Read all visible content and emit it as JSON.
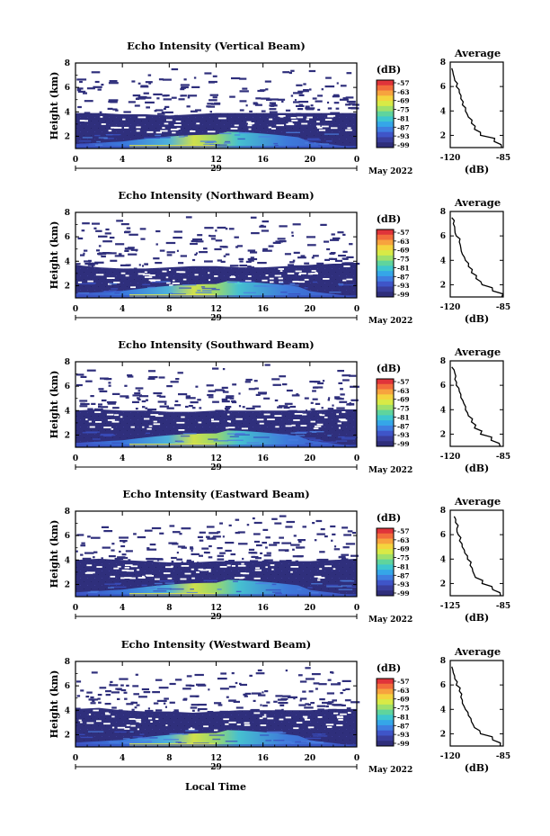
{
  "figure": {
    "shared_xlabel": "Local Time",
    "date_label": "May 2022",
    "day_label": "29"
  },
  "colorbar": {
    "unit": "(dB)",
    "ticks": [
      "-57",
      "-63",
      "-69",
      "-75",
      "-81",
      "-87",
      "-93",
      "-99"
    ],
    "colors": [
      "#e0343a",
      "#f26d3c",
      "#f7a33e",
      "#f4d43e",
      "#d8ea46",
      "#9fe06b",
      "#5fd49d",
      "#3ec6cf",
      "#35a6e8",
      "#3f7ee0",
      "#3f55c8",
      "#3a3e9c",
      "#2f2e7a"
    ],
    "background_color": "#2f2f7c"
  },
  "chart_data": [
    {
      "type": "heatmap",
      "title": "Echo Intensity (Vertical Beam)",
      "ylabel": "Height (km)",
      "x_ticks": [
        "0",
        "4",
        "8",
        "12",
        "16",
        "20",
        "0"
      ],
      "y_ticks": [
        "2",
        "4",
        "6",
        "8"
      ],
      "xlim": [
        0,
        24
      ],
      "ylim": [
        1,
        8
      ],
      "layer_top_km": [
        3.9,
        3.9,
        3.8,
        3.8,
        3.7,
        3.8,
        3.9,
        3.9,
        3.9,
        3.9,
        3.9,
        3.9,
        3.9
      ],
      "average_profile": {
        "title": "Average",
        "xlabel": "(dB)",
        "x_ticks": [
          "-120",
          "-85"
        ],
        "y_ticks": [
          "2",
          "4",
          "6",
          "8"
        ],
        "xlim": [
          -120,
          -85
        ],
        "ylim": [
          1,
          8
        ],
        "height_km": [
          1.0,
          1.5,
          2.0,
          2.5,
          3.0,
          3.5,
          4.0,
          4.5,
          5.0,
          5.5,
          6.0,
          6.5,
          7.0,
          7.5
        ],
        "values_db": [
          -86,
          -91,
          -100,
          -104,
          -106,
          -108,
          -110,
          -112,
          -113,
          -114,
          -116,
          -117,
          -118,
          -119
        ]
      }
    },
    {
      "type": "heatmap",
      "title": "Echo Intensity (Northward Beam)",
      "ylabel": "Height (km)",
      "x_ticks": [
        "0",
        "4",
        "8",
        "12",
        "16",
        "20",
        "0"
      ],
      "y_ticks": [
        "2",
        "4",
        "6",
        "8"
      ],
      "xlim": [
        0,
        24
      ],
      "ylim": [
        1,
        8
      ],
      "layer_top_km": [
        3.7,
        3.5,
        3.4,
        3.4,
        3.5,
        3.6,
        3.6,
        3.5,
        3.5,
        3.6,
        3.7,
        3.8,
        3.8
      ],
      "average_profile": {
        "title": "Average",
        "xlabel": "(dB)",
        "x_ticks": [
          "-120",
          "-85"
        ],
        "y_ticks": [
          "2",
          "4",
          "6",
          "8"
        ],
        "xlim": [
          -120,
          -85
        ],
        "ylim": [
          1,
          8
        ],
        "height_km": [
          1.0,
          1.5,
          2.0,
          2.5,
          3.0,
          3.5,
          4.0,
          4.5,
          5.0,
          5.5,
          6.0,
          6.5,
          7.0,
          7.5
        ],
        "values_db": [
          -86,
          -92,
          -99,
          -103,
          -106,
          -108,
          -110,
          -112,
          -113,
          -114,
          -116,
          -117,
          -118,
          -119
        ]
      }
    },
    {
      "type": "heatmap",
      "title": "Echo Intensity (Southward Beam)",
      "ylabel": "Height (km)",
      "x_ticks": [
        "0",
        "4",
        "8",
        "12",
        "16",
        "20",
        "0"
      ],
      "y_ticks": [
        "2",
        "4",
        "6",
        "8"
      ],
      "xlim": [
        0,
        24
      ],
      "ylim": [
        1,
        8
      ],
      "layer_top_km": [
        4.0,
        4.1,
        4.0,
        4.0,
        3.9,
        3.9,
        4.0,
        4.0,
        4.0,
        4.0,
        4.0,
        4.1,
        4.1
      ],
      "average_profile": {
        "title": "Average",
        "xlabel": "(dB)",
        "x_ticks": [
          "-120",
          "-85"
        ],
        "y_ticks": [
          "2",
          "4",
          "6",
          "8"
        ],
        "xlim": [
          -120,
          -85
        ],
        "ylim": [
          1,
          8
        ],
        "height_km": [
          1.0,
          1.5,
          2.0,
          2.5,
          3.0,
          3.5,
          4.0,
          4.5,
          5.0,
          5.5,
          6.0,
          6.5,
          7.0,
          7.5
        ],
        "values_db": [
          -87,
          -93,
          -100,
          -104,
          -106,
          -108,
          -110,
          -111,
          -113,
          -114,
          -116,
          -117,
          -117,
          -119
        ]
      }
    },
    {
      "type": "heatmap",
      "title": "Echo Intensity (Eastward Beam)",
      "ylabel": "Height (km)",
      "x_ticks": [
        "0",
        "4",
        "8",
        "12",
        "16",
        "20",
        "0"
      ],
      "y_ticks": [
        "2",
        "4",
        "6",
        "8"
      ],
      "xlim": [
        0,
        24
      ],
      "ylim": [
        1,
        8
      ],
      "layer_top_km": [
        4.0,
        4.1,
        4.0,
        3.9,
        3.8,
        3.8,
        3.9,
        3.9,
        3.9,
        3.9,
        3.9,
        4.0,
        4.1
      ],
      "average_profile": {
        "title": "Average",
        "xlabel": "(dB)",
        "x_ticks": [
          "-125",
          "-85"
        ],
        "y_ticks": [
          "2",
          "4",
          "6",
          "8"
        ],
        "xlim": [
          -125,
          -85
        ],
        "ylim": [
          1,
          8
        ],
        "height_km": [
          1.0,
          1.5,
          2.0,
          2.5,
          3.0,
          3.5,
          4.0,
          4.5,
          5.0,
          5.5,
          6.0,
          6.5,
          7.0,
          7.5
        ],
        "values_db": [
          -87,
          -93,
          -101,
          -106,
          -108,
          -110,
          -112,
          -114,
          -116,
          -118,
          -119,
          -120,
          -121,
          -122
        ]
      }
    },
    {
      "type": "heatmap",
      "title": "Echo Intensity (Westward Beam)",
      "ylabel": "Height (km)",
      "x_ticks": [
        "0",
        "4",
        "8",
        "12",
        "16",
        "20",
        "0"
      ],
      "y_ticks": [
        "2",
        "4",
        "6",
        "8"
      ],
      "xlim": [
        0,
        24
      ],
      "ylim": [
        1,
        8
      ],
      "layer_top_km": [
        4.1,
        4.2,
        4.0,
        3.9,
        3.9,
        3.8,
        3.9,
        4.0,
        4.0,
        4.0,
        4.0,
        4.1,
        4.1
      ],
      "average_profile": {
        "title": "Average",
        "xlabel": "(dB)",
        "x_ticks": [
          "-120",
          "-85"
        ],
        "y_ticks": [
          "2",
          "4",
          "6",
          "8"
        ],
        "xlim": [
          -120,
          -85
        ],
        "ylim": [
          1,
          8
        ],
        "height_km": [
          1.0,
          1.5,
          2.0,
          2.5,
          3.0,
          3.5,
          4.0,
          4.5,
          5.0,
          5.5,
          6.0,
          6.5,
          7.0,
          7.5
        ],
        "values_db": [
          -87,
          -92,
          -100,
          -104,
          -106,
          -108,
          -110,
          -112,
          -113,
          -114,
          -116,
          -117,
          -118,
          -119
        ]
      }
    }
  ]
}
